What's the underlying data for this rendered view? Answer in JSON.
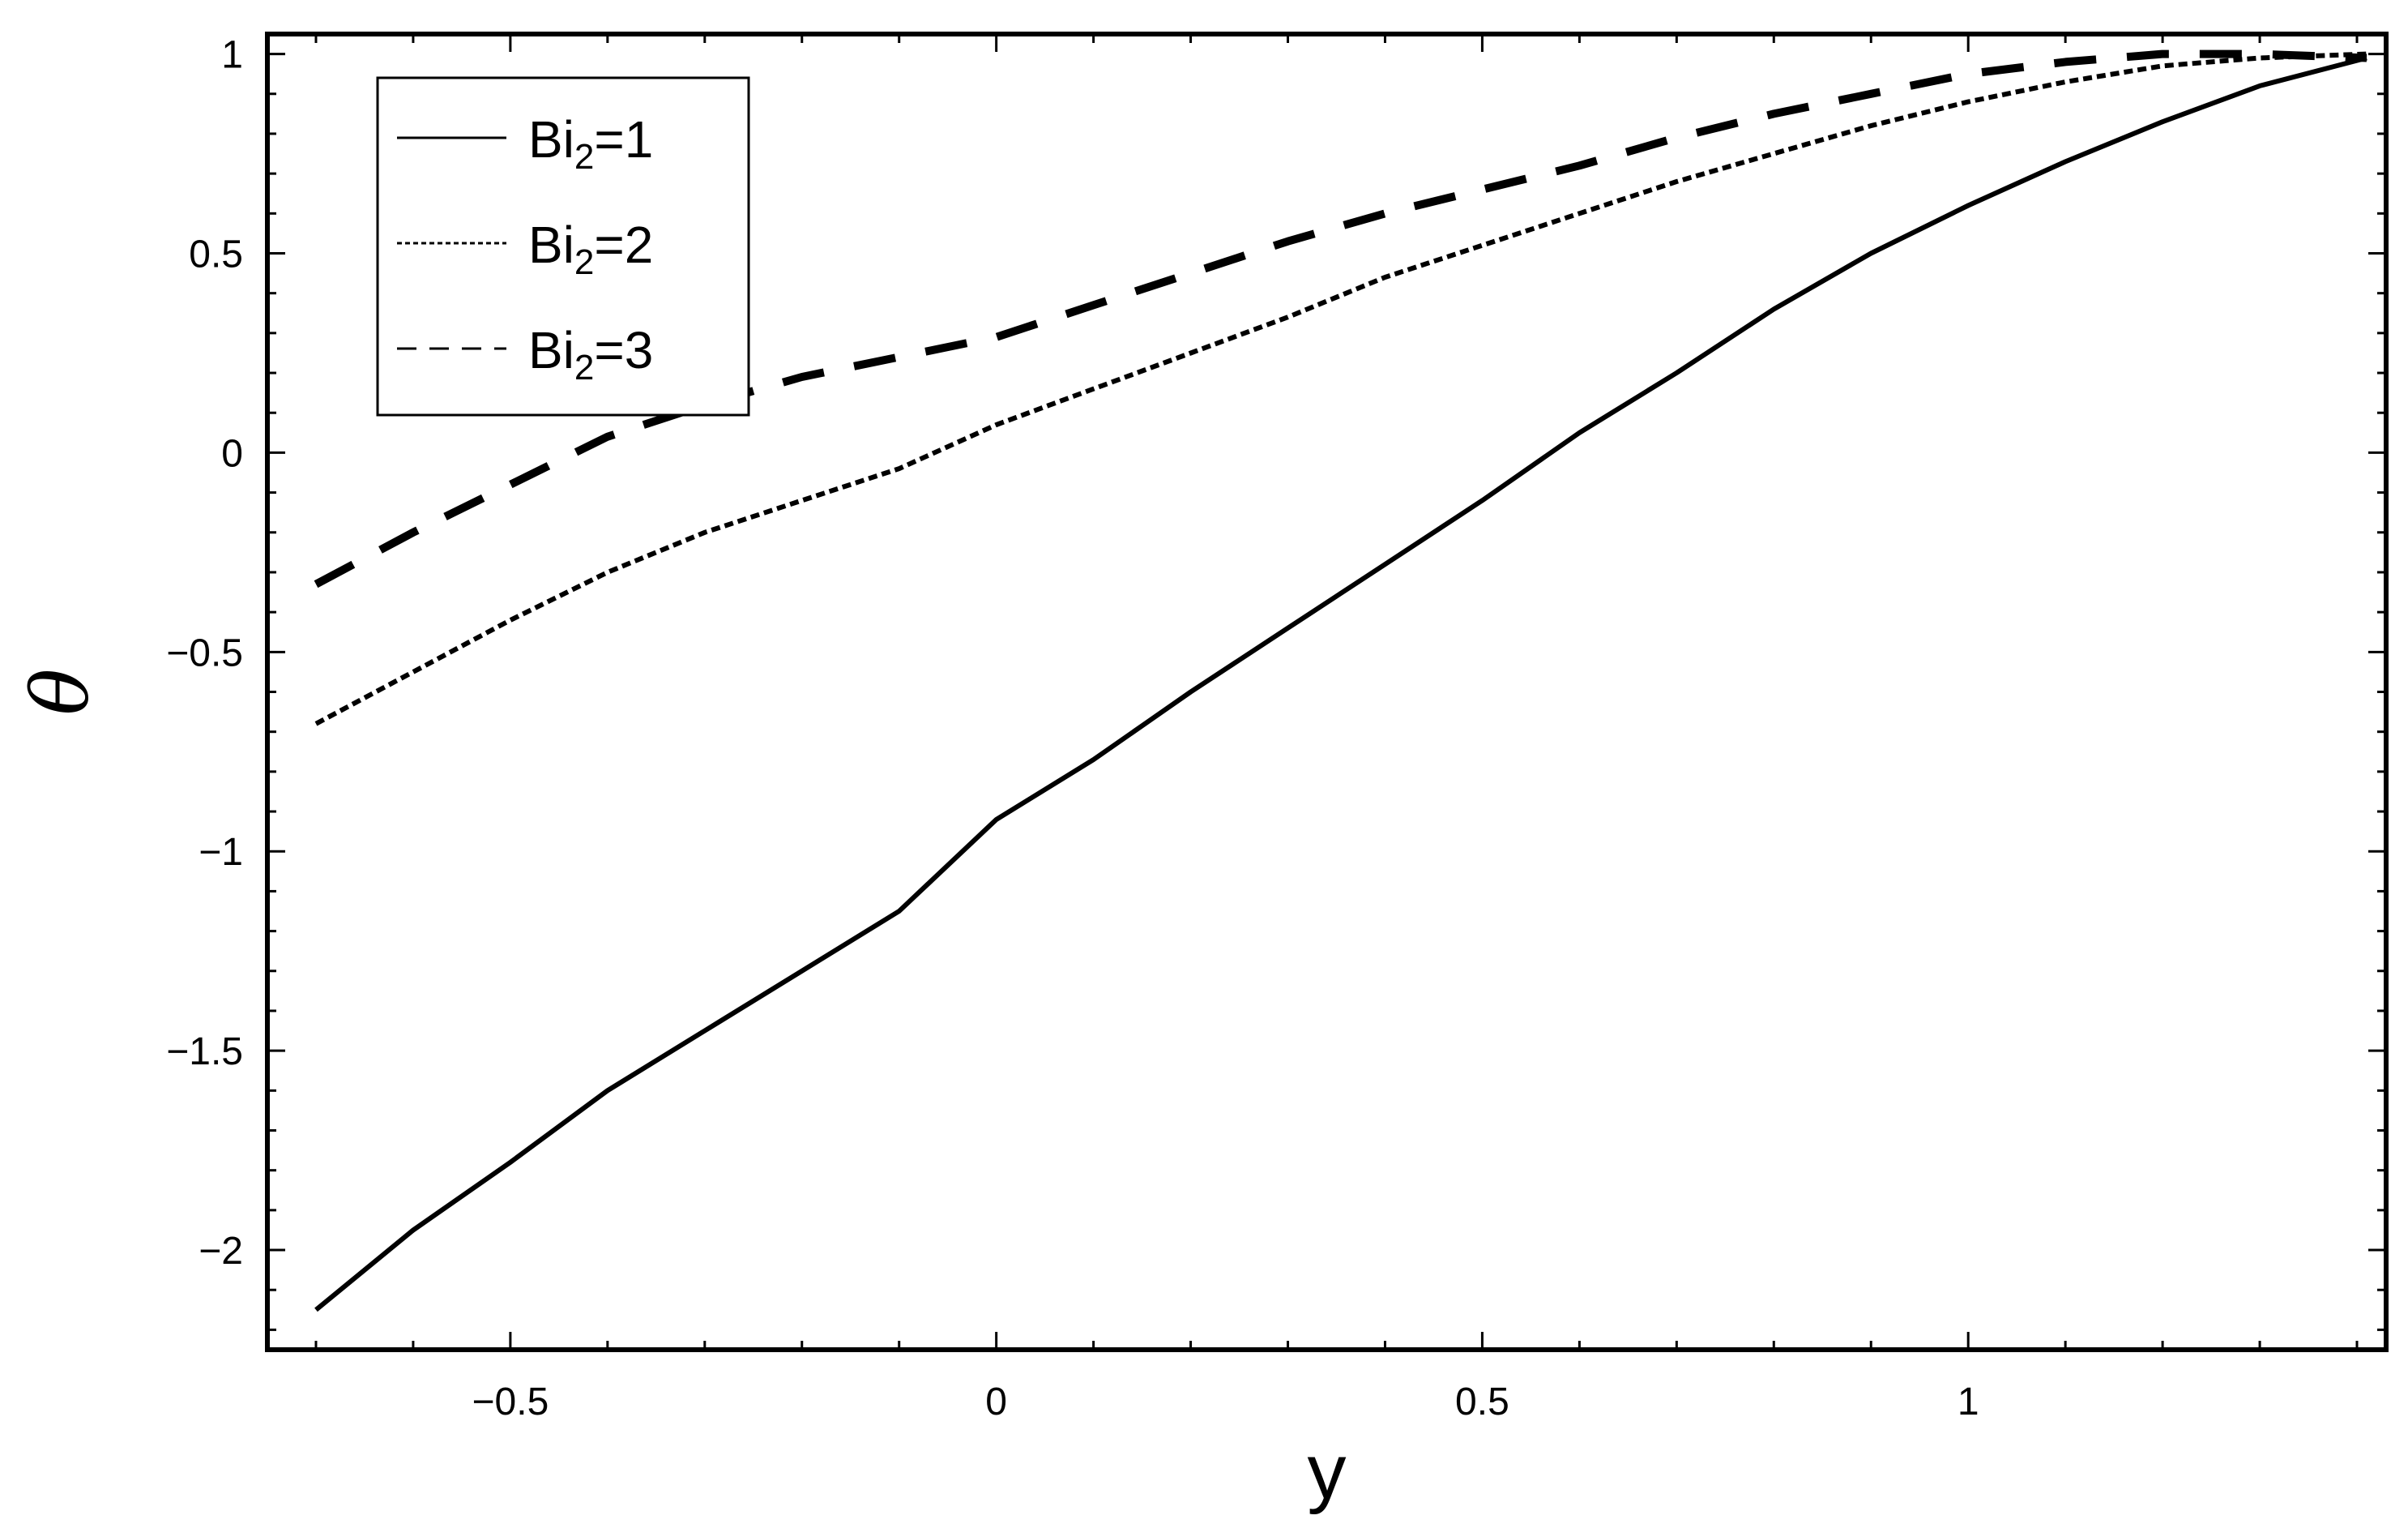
{
  "chart_data": {
    "type": "line",
    "title": "",
    "xlabel": "y",
    "ylabel": "θ",
    "xlim": [
      -0.75,
      1.43
    ],
    "ylim": [
      -2.25,
      1.05
    ],
    "xticks": [
      -0.5,
      0,
      0.5,
      1
    ],
    "xtick_labels": [
      "−0.5",
      "0",
      "0.5",
      "1"
    ],
    "yticks": [
      -2,
      -1.5,
      -1,
      -0.5,
      0,
      0.5,
      1
    ],
    "ytick_labels": [
      "−2",
      "−1.5",
      "−1",
      "−0.5",
      "0",
      "0.5",
      "1"
    ],
    "grid": false,
    "legend_position": "top-left",
    "series": [
      {
        "name_main": "Bi",
        "name_sub": "2",
        "name_value": "=1",
        "style": "solid",
        "x": [
          -0.7,
          -0.6,
          -0.5,
          -0.4,
          -0.3,
          -0.2,
          -0.1,
          0,
          0.1,
          0.2,
          0.3,
          0.4,
          0.5,
          0.6,
          0.7,
          0.8,
          0.9,
          1.0,
          1.1,
          1.2,
          1.3,
          1.41
        ],
        "y": [
          -2.15,
          -1.95,
          -1.78,
          -1.6,
          -1.45,
          -1.3,
          -1.15,
          -0.92,
          -0.77,
          -0.6,
          -0.44,
          -0.28,
          -0.12,
          0.05,
          0.2,
          0.36,
          0.5,
          0.62,
          0.73,
          0.83,
          0.92,
          0.99
        ]
      },
      {
        "name_main": "Bi",
        "name_sub": "2",
        "name_value": "=2",
        "style": "dotted",
        "x": [
          -0.7,
          -0.6,
          -0.5,
          -0.4,
          -0.3,
          -0.2,
          -0.1,
          0,
          0.1,
          0.2,
          0.3,
          0.4,
          0.5,
          0.6,
          0.7,
          0.8,
          0.9,
          1.0,
          1.1,
          1.2,
          1.3,
          1.41
        ],
        "y": [
          -0.68,
          -0.55,
          -0.42,
          -0.3,
          -0.2,
          -0.12,
          -0.04,
          0.07,
          0.16,
          0.25,
          0.34,
          0.44,
          0.52,
          0.6,
          0.68,
          0.75,
          0.82,
          0.88,
          0.93,
          0.97,
          0.99,
          1.0
        ]
      },
      {
        "name_main": "Bi",
        "name_sub": "2",
        "name_value": "=3",
        "style": "dashed",
        "x": [
          -0.7,
          -0.6,
          -0.5,
          -0.4,
          -0.3,
          -0.2,
          -0.1,
          0,
          0.1,
          0.2,
          0.3,
          0.4,
          0.5,
          0.6,
          0.7,
          0.8,
          0.9,
          1.0,
          1.1,
          1.2,
          1.3,
          1.41
        ],
        "y": [
          -0.33,
          -0.2,
          -0.08,
          0.04,
          0.12,
          0.19,
          0.24,
          0.29,
          0.37,
          0.45,
          0.53,
          0.6,
          0.66,
          0.72,
          0.79,
          0.85,
          0.9,
          0.95,
          0.98,
          1.0,
          1.0,
          0.99
        ]
      }
    ]
  }
}
